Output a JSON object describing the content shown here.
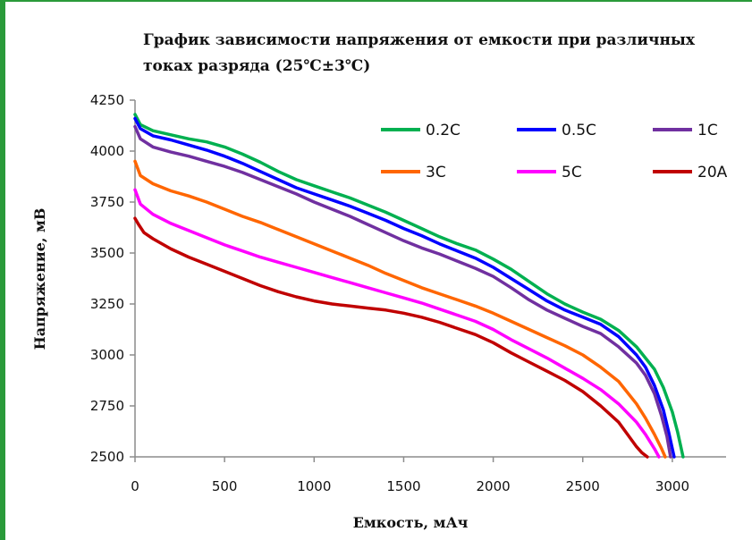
{
  "chart_data": {
    "type": "line",
    "title": "График зависимости напряжения от емкости при различных токах разряда (25℃±3℃)",
    "title_lines": [
      "График зависимости напряжения от емкости при различных",
      "токах разряда (25℃±3℃)"
    ],
    "xlabel": "Емкость, мАч",
    "ylabel": "Напряжение, мВ",
    "xlim": [
      0,
      3300
    ],
    "ylim": [
      2500,
      4250
    ],
    "x_ticks": [
      0,
      500,
      1000,
      1500,
      2000,
      2500,
      3000
    ],
    "y_ticks": [
      2500,
      2750,
      3000,
      3250,
      3500,
      3750,
      4000,
      4250
    ],
    "grid": false,
    "legend_position": "top-right",
    "series": [
      {
        "name": "0.2C",
        "color": "#00b050",
        "points": [
          [
            0,
            4180
          ],
          [
            30,
            4130
          ],
          [
            100,
            4100
          ],
          [
            200,
            4080
          ],
          [
            300,
            4060
          ],
          [
            400,
            4045
          ],
          [
            500,
            4020
          ],
          [
            600,
            3985
          ],
          [
            700,
            3945
          ],
          [
            800,
            3900
          ],
          [
            900,
            3860
          ],
          [
            1000,
            3830
          ],
          [
            1100,
            3800
          ],
          [
            1200,
            3770
          ],
          [
            1300,
            3735
          ],
          [
            1400,
            3700
          ],
          [
            1500,
            3660
          ],
          [
            1600,
            3620
          ],
          [
            1700,
            3580
          ],
          [
            1800,
            3545
          ],
          [
            1900,
            3515
          ],
          [
            2000,
            3470
          ],
          [
            2100,
            3420
          ],
          [
            2200,
            3360
          ],
          [
            2300,
            3300
          ],
          [
            2400,
            3250
          ],
          [
            2500,
            3210
          ],
          [
            2600,
            3175
          ],
          [
            2700,
            3120
          ],
          [
            2800,
            3040
          ],
          [
            2900,
            2930
          ],
          [
            2950,
            2840
          ],
          [
            3000,
            2720
          ],
          [
            3030,
            2620
          ],
          [
            3060,
            2500
          ]
        ]
      },
      {
        "name": "0.5C",
        "color": "#0000ff",
        "points": [
          [
            0,
            4160
          ],
          [
            30,
            4110
          ],
          [
            100,
            4075
          ],
          [
            200,
            4055
          ],
          [
            300,
            4030
          ],
          [
            400,
            4005
          ],
          [
            500,
            3975
          ],
          [
            600,
            3940
          ],
          [
            700,
            3900
          ],
          [
            800,
            3860
          ],
          [
            900,
            3820
          ],
          [
            1000,
            3790
          ],
          [
            1100,
            3760
          ],
          [
            1200,
            3730
          ],
          [
            1300,
            3695
          ],
          [
            1400,
            3660
          ],
          [
            1500,
            3620
          ],
          [
            1600,
            3585
          ],
          [
            1700,
            3545
          ],
          [
            1800,
            3510
          ],
          [
            1900,
            3475
          ],
          [
            2000,
            3430
          ],
          [
            2100,
            3375
          ],
          [
            2200,
            3320
          ],
          [
            2300,
            3265
          ],
          [
            2400,
            3220
          ],
          [
            2500,
            3185
          ],
          [
            2600,
            3150
          ],
          [
            2700,
            3090
          ],
          [
            2800,
            3000
          ],
          [
            2850,
            2940
          ],
          [
            2900,
            2850
          ],
          [
            2950,
            2730
          ],
          [
            2980,
            2620
          ],
          [
            3010,
            2500
          ]
        ]
      },
      {
        "name": "1C",
        "color": "#7030a0",
        "points": [
          [
            0,
            4120
          ],
          [
            30,
            4060
          ],
          [
            100,
            4020
          ],
          [
            200,
            3995
          ],
          [
            300,
            3975
          ],
          [
            400,
            3950
          ],
          [
            500,
            3925
          ],
          [
            600,
            3895
          ],
          [
            700,
            3860
          ],
          [
            800,
            3825
          ],
          [
            900,
            3790
          ],
          [
            1000,
            3750
          ],
          [
            1100,
            3715
          ],
          [
            1200,
            3680
          ],
          [
            1300,
            3640
          ],
          [
            1400,
            3600
          ],
          [
            1500,
            3560
          ],
          [
            1600,
            3525
          ],
          [
            1700,
            3495
          ],
          [
            1800,
            3460
          ],
          [
            1900,
            3425
          ],
          [
            2000,
            3385
          ],
          [
            2100,
            3330
          ],
          [
            2200,
            3270
          ],
          [
            2300,
            3220
          ],
          [
            2400,
            3180
          ],
          [
            2500,
            3140
          ],
          [
            2600,
            3105
          ],
          [
            2700,
            3040
          ],
          [
            2800,
            2960
          ],
          [
            2850,
            2900
          ],
          [
            2900,
            2810
          ],
          [
            2940,
            2700
          ],
          [
            2970,
            2600
          ],
          [
            2990,
            2500
          ]
        ]
      },
      {
        "name": "3C",
        "color": "#ff6600",
        "points": [
          [
            0,
            3950
          ],
          [
            30,
            3880
          ],
          [
            100,
            3840
          ],
          [
            200,
            3805
          ],
          [
            300,
            3780
          ],
          [
            400,
            3750
          ],
          [
            500,
            3715
          ],
          [
            600,
            3680
          ],
          [
            700,
            3650
          ],
          [
            800,
            3615
          ],
          [
            900,
            3580
          ],
          [
            1000,
            3545
          ],
          [
            1100,
            3510
          ],
          [
            1200,
            3475
          ],
          [
            1300,
            3440
          ],
          [
            1400,
            3400
          ],
          [
            1500,
            3365
          ],
          [
            1600,
            3330
          ],
          [
            1700,
            3300
          ],
          [
            1800,
            3270
          ],
          [
            1900,
            3240
          ],
          [
            2000,
            3205
          ],
          [
            2100,
            3165
          ],
          [
            2200,
            3125
          ],
          [
            2300,
            3085
          ],
          [
            2400,
            3045
          ],
          [
            2500,
            3000
          ],
          [
            2600,
            2940
          ],
          [
            2700,
            2870
          ],
          [
            2800,
            2760
          ],
          [
            2850,
            2690
          ],
          [
            2900,
            2610
          ],
          [
            2940,
            2540
          ],
          [
            2960,
            2500
          ]
        ]
      },
      {
        "name": "5C",
        "color": "#ff00ff",
        "points": [
          [
            0,
            3810
          ],
          [
            30,
            3740
          ],
          [
            100,
            3690
          ],
          [
            200,
            3645
          ],
          [
            300,
            3610
          ],
          [
            400,
            3575
          ],
          [
            500,
            3540
          ],
          [
            600,
            3510
          ],
          [
            700,
            3480
          ],
          [
            800,
            3455
          ],
          [
            900,
            3430
          ],
          [
            1000,
            3405
          ],
          [
            1100,
            3380
          ],
          [
            1200,
            3355
          ],
          [
            1300,
            3330
          ],
          [
            1400,
            3305
          ],
          [
            1500,
            3280
          ],
          [
            1600,
            3255
          ],
          [
            1700,
            3225
          ],
          [
            1800,
            3195
          ],
          [
            1900,
            3165
          ],
          [
            2000,
            3125
          ],
          [
            2100,
            3075
          ],
          [
            2200,
            3030
          ],
          [
            2300,
            2985
          ],
          [
            2400,
            2935
          ],
          [
            2500,
            2885
          ],
          [
            2600,
            2830
          ],
          [
            2700,
            2760
          ],
          [
            2800,
            2670
          ],
          [
            2850,
            2610
          ],
          [
            2900,
            2540
          ],
          [
            2925,
            2500
          ]
        ]
      },
      {
        "name": "20A",
        "color": "#c00000",
        "points": [
          [
            0,
            3670
          ],
          [
            20,
            3640
          ],
          [
            50,
            3600
          ],
          [
            100,
            3570
          ],
          [
            200,
            3520
          ],
          [
            300,
            3480
          ],
          [
            400,
            3445
          ],
          [
            500,
            3410
          ],
          [
            600,
            3375
          ],
          [
            700,
            3340
          ],
          [
            800,
            3310
          ],
          [
            900,
            3285
          ],
          [
            1000,
            3265
          ],
          [
            1100,
            3250
          ],
          [
            1200,
            3240
          ],
          [
            1300,
            3230
          ],
          [
            1400,
            3220
          ],
          [
            1500,
            3205
          ],
          [
            1600,
            3185
          ],
          [
            1700,
            3160
          ],
          [
            1800,
            3130
          ],
          [
            1900,
            3100
          ],
          [
            2000,
            3060
          ],
          [
            2100,
            3010
          ],
          [
            2200,
            2965
          ],
          [
            2300,
            2920
          ],
          [
            2400,
            2875
          ],
          [
            2500,
            2820
          ],
          [
            2600,
            2750
          ],
          [
            2700,
            2670
          ],
          [
            2750,
            2610
          ],
          [
            2800,
            2550
          ],
          [
            2830,
            2520
          ],
          [
            2860,
            2500
          ]
        ]
      }
    ]
  },
  "frame_color": "#2a9a3a"
}
